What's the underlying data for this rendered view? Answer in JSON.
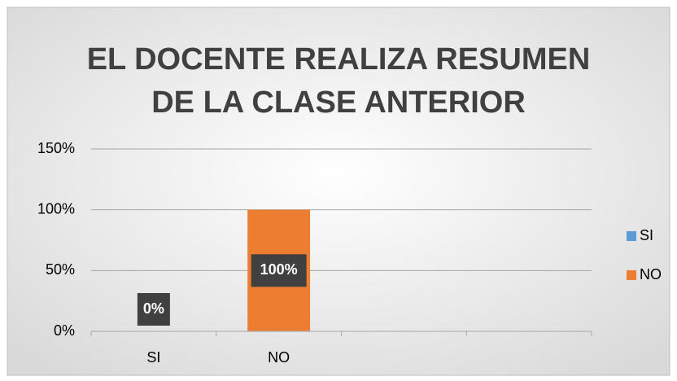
{
  "chart_data": {
    "type": "bar",
    "stacked": true,
    "title": [
      "EL DOCENTE REALIZA RESUMEN",
      "DE LA CLASE ANTERIOR"
    ],
    "categories": [
      "SI",
      "NO",
      null,
      null
    ],
    "series": [
      {
        "name": "SI",
        "color": "#5b9bd5",
        "values": [
          0,
          null,
          null,
          null
        ],
        "value_labels": [
          "0%",
          null,
          null,
          null
        ]
      },
      {
        "name": "NO",
        "color": "#ed7d31",
        "values": [
          null,
          100,
          null,
          null
        ],
        "value_labels": [
          null,
          "100%",
          null,
          null
        ]
      }
    ],
    "ylim": [
      0,
      150
    ],
    "yticks": [
      {
        "value": 0,
        "label": "0%"
      },
      {
        "value": 50,
        "label": "50%"
      },
      {
        "value": 100,
        "label": "100%"
      },
      {
        "value": 150,
        "label": "150%"
      }
    ],
    "grid": true,
    "legend": "right"
  }
}
